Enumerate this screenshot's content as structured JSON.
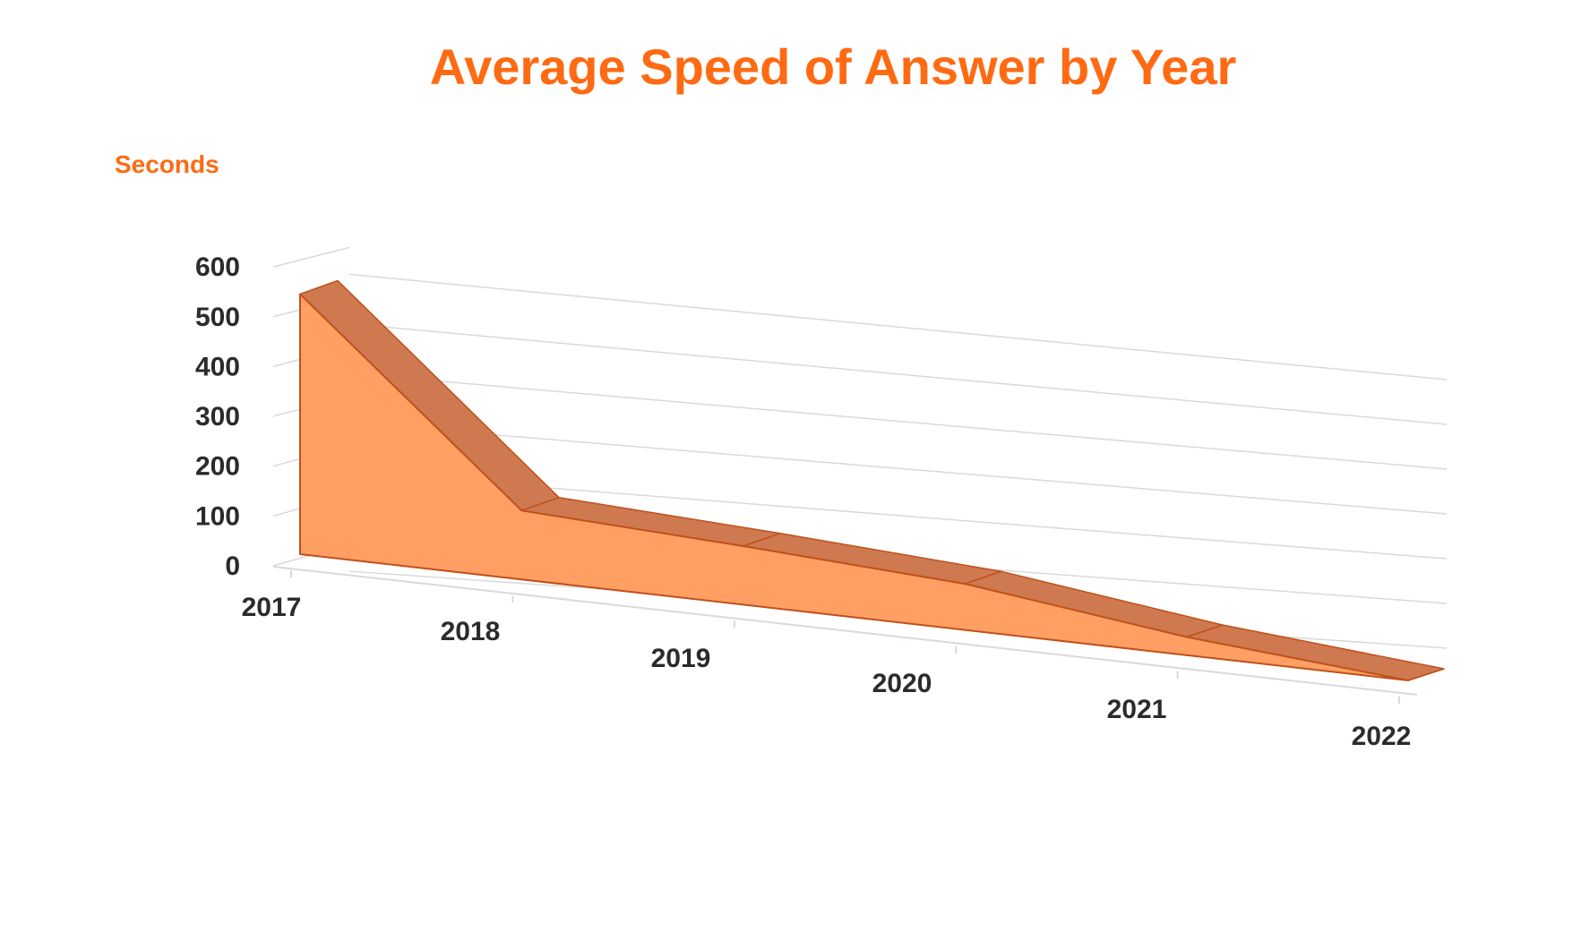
{
  "chart_data": {
    "type": "area",
    "title": "Average Speed of Answer by Year",
    "ylabel": "Seconds",
    "xlabel": "",
    "categories": [
      "2017",
      "2018",
      "2019",
      "2020",
      "2021",
      "2022"
    ],
    "values": [
      540,
      145,
      125,
      100,
      40,
      0
    ],
    "ylim": [
      0,
      600
    ],
    "yticks": [
      0,
      100,
      200,
      300,
      400,
      500,
      600
    ],
    "grid": true,
    "legend": "none",
    "style": "3d",
    "colors": {
      "front": "#ff9f63",
      "top": "#cf7950",
      "side": "#d07848",
      "edge": "#c0501a",
      "title": "#ff6a13",
      "grid": "#d9d9d9"
    }
  }
}
